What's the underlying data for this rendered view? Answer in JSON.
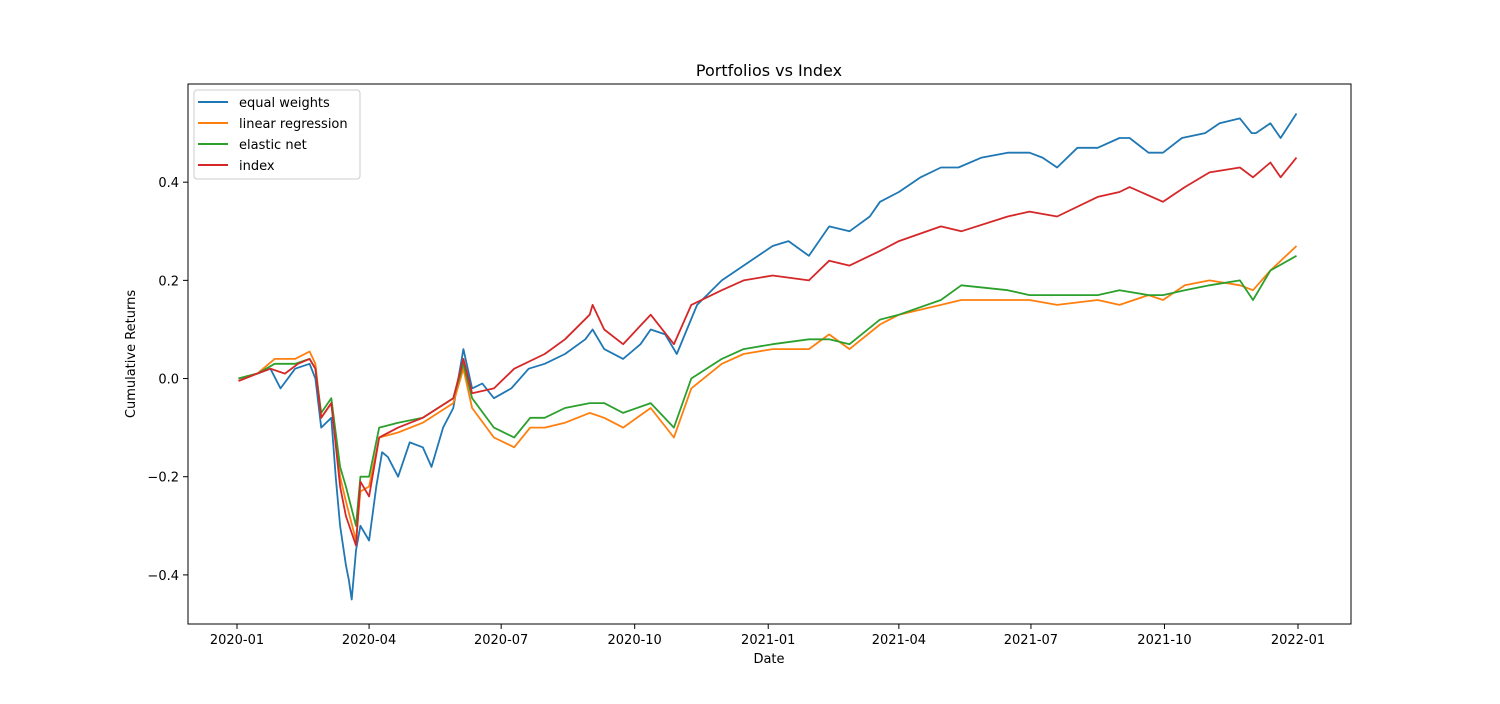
{
  "chart_data": {
    "type": "line",
    "title": "Portfolios vs Index",
    "xlabel": "Date",
    "ylabel": "Cumulative Returns",
    "x_range": [
      "2020-01-01",
      "2022-01-01"
    ],
    "y_range": [
      -0.5,
      0.6
    ],
    "x_ticks": [
      "2020-01",
      "2020-04",
      "2020-07",
      "2020-10",
      "2021-01",
      "2021-04",
      "2021-07",
      "2021-10",
      "2022-01"
    ],
    "y_ticks": [
      -0.4,
      -0.2,
      0.0,
      0.2,
      0.4
    ],
    "y_tick_labels": [
      "−0.4",
      "−0.2",
      "0.0",
      "0.2",
      "0.4"
    ],
    "grid": false,
    "legend_position": "top-left",
    "series": [
      {
        "name": "equal weights",
        "color": "#1f77b4",
        "points": [
          [
            "2020-01-02",
            0.0
          ],
          [
            "2020-01-15",
            0.01
          ],
          [
            "2020-01-24",
            0.02
          ],
          [
            "2020-01-31",
            -0.02
          ],
          [
            "2020-02-10",
            0.02
          ],
          [
            "2020-02-20",
            0.03
          ],
          [
            "2020-02-24",
            0.0
          ],
          [
            "2020-02-28",
            -0.1
          ],
          [
            "2020-03-06",
            -0.08
          ],
          [
            "2020-03-09",
            -0.2
          ],
          [
            "2020-03-12",
            -0.3
          ],
          [
            "2020-03-16",
            -0.38
          ],
          [
            "2020-03-18",
            -0.41
          ],
          [
            "2020-03-20",
            -0.45
          ],
          [
            "2020-03-23",
            -0.35
          ],
          [
            "2020-03-26",
            -0.3
          ],
          [
            "2020-04-01",
            -0.33
          ],
          [
            "2020-04-06",
            -0.22
          ],
          [
            "2020-04-10",
            -0.15
          ],
          [
            "2020-04-14",
            -0.16
          ],
          [
            "2020-04-21",
            -0.2
          ],
          [
            "2020-04-29",
            -0.13
          ],
          [
            "2020-05-08",
            -0.14
          ],
          [
            "2020-05-14",
            -0.18
          ],
          [
            "2020-05-22",
            -0.1
          ],
          [
            "2020-05-29",
            -0.06
          ],
          [
            "2020-06-05",
            0.06
          ],
          [
            "2020-06-11",
            -0.02
          ],
          [
            "2020-06-18",
            -0.01
          ],
          [
            "2020-06-26",
            -0.04
          ],
          [
            "2020-07-08",
            -0.02
          ],
          [
            "2020-07-20",
            0.02
          ],
          [
            "2020-07-31",
            0.03
          ],
          [
            "2020-08-14",
            0.05
          ],
          [
            "2020-08-28",
            0.08
          ],
          [
            "2020-09-02",
            0.1
          ],
          [
            "2020-09-10",
            0.06
          ],
          [
            "2020-09-23",
            0.04
          ],
          [
            "2020-10-05",
            0.07
          ],
          [
            "2020-10-12",
            0.1
          ],
          [
            "2020-10-22",
            0.09
          ],
          [
            "2020-10-30",
            0.05
          ],
          [
            "2020-11-06",
            0.1
          ],
          [
            "2020-11-13",
            0.15
          ],
          [
            "2020-11-30",
            0.2
          ],
          [
            "2020-12-15",
            0.23
          ],
          [
            "2021-01-04",
            0.27
          ],
          [
            "2021-01-15",
            0.28
          ],
          [
            "2021-01-29",
            0.25
          ],
          [
            "2021-02-12",
            0.31
          ],
          [
            "2021-02-26",
            0.3
          ],
          [
            "2021-03-12",
            0.33
          ],
          [
            "2021-03-19",
            0.36
          ],
          [
            "2021-04-01",
            0.38
          ],
          [
            "2021-04-16",
            0.41
          ],
          [
            "2021-04-30",
            0.43
          ],
          [
            "2021-05-12",
            0.43
          ],
          [
            "2021-05-28",
            0.45
          ],
          [
            "2021-06-15",
            0.46
          ],
          [
            "2021-06-30",
            0.46
          ],
          [
            "2021-07-09",
            0.45
          ],
          [
            "2021-07-19",
            0.43
          ],
          [
            "2021-08-02",
            0.47
          ],
          [
            "2021-08-16",
            0.47
          ],
          [
            "2021-08-31",
            0.49
          ],
          [
            "2021-09-07",
            0.49
          ],
          [
            "2021-09-20",
            0.46
          ],
          [
            "2021-09-30",
            0.46
          ],
          [
            "2021-10-13",
            0.49
          ],
          [
            "2021-10-29",
            0.5
          ],
          [
            "2021-11-08",
            0.52
          ],
          [
            "2021-11-22",
            0.53
          ],
          [
            "2021-11-30",
            0.5
          ],
          [
            "2021-12-03",
            0.5
          ],
          [
            "2021-12-13",
            0.52
          ],
          [
            "2021-12-20",
            0.49
          ],
          [
            "2021-12-31",
            0.54
          ]
        ]
      },
      {
        "name": "linear regression",
        "color": "#ff7f0e",
        "points": [
          [
            "2020-01-02",
            0.0
          ],
          [
            "2020-01-15",
            0.01
          ],
          [
            "2020-01-27",
            0.04
          ],
          [
            "2020-02-10",
            0.04
          ],
          [
            "2020-02-20",
            0.055
          ],
          [
            "2020-02-24",
            0.03
          ],
          [
            "2020-02-28",
            -0.08
          ],
          [
            "2020-03-06",
            -0.05
          ],
          [
            "2020-03-12",
            -0.2
          ],
          [
            "2020-03-16",
            -0.25
          ],
          [
            "2020-03-23",
            -0.33
          ],
          [
            "2020-03-26",
            -0.23
          ],
          [
            "2020-04-01",
            -0.22
          ],
          [
            "2020-04-08",
            -0.12
          ],
          [
            "2020-04-21",
            -0.11
          ],
          [
            "2020-05-08",
            -0.09
          ],
          [
            "2020-05-29",
            -0.05
          ],
          [
            "2020-06-05",
            0.02
          ],
          [
            "2020-06-11",
            -0.06
          ],
          [
            "2020-06-26",
            -0.12
          ],
          [
            "2020-07-10",
            -0.14
          ],
          [
            "2020-07-21",
            -0.1
          ],
          [
            "2020-07-31",
            -0.1
          ],
          [
            "2020-08-14",
            -0.09
          ],
          [
            "2020-08-31",
            -0.07
          ],
          [
            "2020-09-10",
            -0.08
          ],
          [
            "2020-09-23",
            -0.1
          ],
          [
            "2020-10-12",
            -0.06
          ],
          [
            "2020-10-28",
            -0.12
          ],
          [
            "2020-11-09",
            -0.02
          ],
          [
            "2020-11-30",
            0.03
          ],
          [
            "2020-12-15",
            0.05
          ],
          [
            "2021-01-04",
            0.06
          ],
          [
            "2021-01-29",
            0.06
          ],
          [
            "2021-02-12",
            0.09
          ],
          [
            "2021-02-26",
            0.06
          ],
          [
            "2021-03-19",
            0.11
          ],
          [
            "2021-04-01",
            0.13
          ],
          [
            "2021-04-30",
            0.15
          ],
          [
            "2021-05-14",
            0.16
          ],
          [
            "2021-06-15",
            0.16
          ],
          [
            "2021-06-30",
            0.16
          ],
          [
            "2021-07-19",
            0.15
          ],
          [
            "2021-08-16",
            0.16
          ],
          [
            "2021-08-31",
            0.15
          ],
          [
            "2021-09-20",
            0.17
          ],
          [
            "2021-09-30",
            0.16
          ],
          [
            "2021-10-15",
            0.19
          ],
          [
            "2021-11-01",
            0.2
          ],
          [
            "2021-11-22",
            0.19
          ],
          [
            "2021-12-01",
            0.18
          ],
          [
            "2021-12-13",
            0.22
          ],
          [
            "2021-12-31",
            0.27
          ]
        ]
      },
      {
        "name": "elastic net",
        "color": "#2ca02c",
        "points": [
          [
            "2020-01-02",
            0.0
          ],
          [
            "2020-01-15",
            0.01
          ],
          [
            "2020-01-27",
            0.03
          ],
          [
            "2020-02-10",
            0.03
          ],
          [
            "2020-02-20",
            0.04
          ],
          [
            "2020-02-24",
            0.02
          ],
          [
            "2020-02-28",
            -0.07
          ],
          [
            "2020-03-06",
            -0.04
          ],
          [
            "2020-03-12",
            -0.18
          ],
          [
            "2020-03-16",
            -0.22
          ],
          [
            "2020-03-23",
            -0.3
          ],
          [
            "2020-03-26",
            -0.2
          ],
          [
            "2020-04-01",
            -0.2
          ],
          [
            "2020-04-08",
            -0.1
          ],
          [
            "2020-04-21",
            -0.09
          ],
          [
            "2020-05-08",
            -0.08
          ],
          [
            "2020-05-29",
            -0.04
          ],
          [
            "2020-06-05",
            0.03
          ],
          [
            "2020-06-11",
            -0.04
          ],
          [
            "2020-06-26",
            -0.1
          ],
          [
            "2020-07-10",
            -0.12
          ],
          [
            "2020-07-21",
            -0.08
          ],
          [
            "2020-07-31",
            -0.08
          ],
          [
            "2020-08-14",
            -0.06
          ],
          [
            "2020-08-31",
            -0.05
          ],
          [
            "2020-09-10",
            -0.05
          ],
          [
            "2020-09-23",
            -0.07
          ],
          [
            "2020-10-12",
            -0.05
          ],
          [
            "2020-10-28",
            -0.1
          ],
          [
            "2020-11-09",
            0.0
          ],
          [
            "2020-11-30",
            0.04
          ],
          [
            "2020-12-15",
            0.06
          ],
          [
            "2021-01-04",
            0.07
          ],
          [
            "2021-01-29",
            0.08
          ],
          [
            "2021-02-12",
            0.08
          ],
          [
            "2021-02-26",
            0.07
          ],
          [
            "2021-03-19",
            0.12
          ],
          [
            "2021-04-01",
            0.13
          ],
          [
            "2021-04-30",
            0.16
          ],
          [
            "2021-05-14",
            0.19
          ],
          [
            "2021-06-15",
            0.18
          ],
          [
            "2021-06-30",
            0.17
          ],
          [
            "2021-07-19",
            0.17
          ],
          [
            "2021-08-16",
            0.17
          ],
          [
            "2021-08-31",
            0.18
          ],
          [
            "2021-09-20",
            0.17
          ],
          [
            "2021-09-30",
            0.17
          ],
          [
            "2021-10-15",
            0.18
          ],
          [
            "2021-11-01",
            0.19
          ],
          [
            "2021-11-22",
            0.2
          ],
          [
            "2021-12-01",
            0.16
          ],
          [
            "2021-12-13",
            0.22
          ],
          [
            "2021-12-31",
            0.25
          ]
        ]
      },
      {
        "name": "index",
        "color": "#d62728",
        "points": [
          [
            "2020-01-02",
            -0.005
          ],
          [
            "2020-01-15",
            0.01
          ],
          [
            "2020-01-24",
            0.02
          ],
          [
            "2020-02-03",
            0.01
          ],
          [
            "2020-02-12",
            0.03
          ],
          [
            "2020-02-20",
            0.04
          ],
          [
            "2020-02-24",
            0.02
          ],
          [
            "2020-02-28",
            -0.08
          ],
          [
            "2020-03-06",
            -0.05
          ],
          [
            "2020-03-12",
            -0.22
          ],
          [
            "2020-03-16",
            -0.28
          ],
          [
            "2020-03-23",
            -0.34
          ],
          [
            "2020-03-26",
            -0.21
          ],
          [
            "2020-04-01",
            -0.24
          ],
          [
            "2020-04-08",
            -0.12
          ],
          [
            "2020-04-21",
            -0.1
          ],
          [
            "2020-05-08",
            -0.08
          ],
          [
            "2020-05-29",
            -0.04
          ],
          [
            "2020-06-05",
            0.04
          ],
          [
            "2020-06-11",
            -0.03
          ],
          [
            "2020-06-26",
            -0.02
          ],
          [
            "2020-07-10",
            0.02
          ],
          [
            "2020-07-31",
            0.05
          ],
          [
            "2020-08-14",
            0.08
          ],
          [
            "2020-08-31",
            0.13
          ],
          [
            "2020-09-02",
            0.15
          ],
          [
            "2020-09-10",
            0.1
          ],
          [
            "2020-09-23",
            0.07
          ],
          [
            "2020-10-12",
            0.13
          ],
          [
            "2020-10-28",
            0.07
          ],
          [
            "2020-11-09",
            0.15
          ],
          [
            "2020-11-30",
            0.18
          ],
          [
            "2020-12-15",
            0.2
          ],
          [
            "2021-01-04",
            0.21
          ],
          [
            "2021-01-29",
            0.2
          ],
          [
            "2021-02-12",
            0.24
          ],
          [
            "2021-02-26",
            0.23
          ],
          [
            "2021-03-19",
            0.26
          ],
          [
            "2021-04-01",
            0.28
          ],
          [
            "2021-04-30",
            0.31
          ],
          [
            "2021-05-14",
            0.3
          ],
          [
            "2021-06-15",
            0.33
          ],
          [
            "2021-06-30",
            0.34
          ],
          [
            "2021-07-19",
            0.33
          ],
          [
            "2021-08-16",
            0.37
          ],
          [
            "2021-08-31",
            0.38
          ],
          [
            "2021-09-07",
            0.39
          ],
          [
            "2021-09-30",
            0.36
          ],
          [
            "2021-10-15",
            0.39
          ],
          [
            "2021-11-01",
            0.42
          ],
          [
            "2021-11-22",
            0.43
          ],
          [
            "2021-12-01",
            0.41
          ],
          [
            "2021-12-13",
            0.44
          ],
          [
            "2021-12-20",
            0.41
          ],
          [
            "2021-12-31",
            0.45
          ]
        ]
      }
    ]
  }
}
